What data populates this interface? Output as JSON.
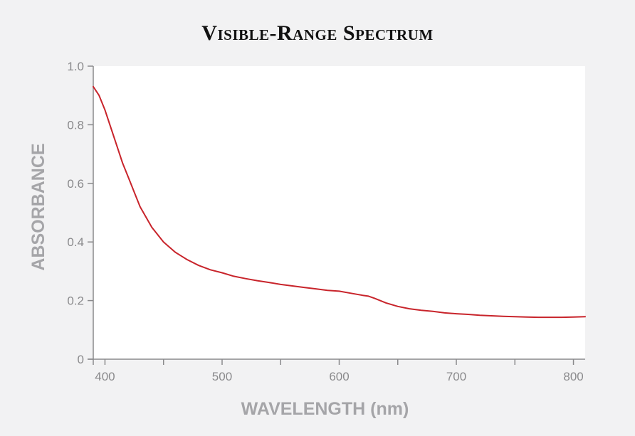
{
  "chart_data": {
    "type": "line",
    "title": "Visible-Range Spectrum",
    "xlabel": "WAVELENGTH (nm)",
    "ylabel": "ABSORBANCE",
    "xlim": [
      390,
      810
    ],
    "ylim": [
      0,
      1.0
    ],
    "x_ticks": [
      400,
      500,
      600,
      700,
      800
    ],
    "y_ticks": [
      0,
      0.2,
      0.4,
      0.6,
      0.8,
      1.0
    ],
    "y_tick_labels": [
      "0",
      "0.2",
      "0.4",
      "0.6",
      "0.8",
      "1.0"
    ],
    "grid": false,
    "legend": "none",
    "colors": {
      "line": "#c8242b",
      "plot_bg": "#ffffff",
      "page_bg": "#f2f2f3",
      "axis": "#8a8a8c"
    },
    "series": [
      {
        "x": [
          390,
          395,
          400,
          405,
          410,
          415,
          420,
          425,
          430,
          440,
          450,
          460,
          470,
          480,
          490,
          500,
          510,
          520,
          530,
          540,
          550,
          560,
          570,
          580,
          590,
          600,
          610,
          620,
          625,
          630,
          640,
          650,
          660,
          670,
          680,
          690,
          700,
          710,
          720,
          730,
          740,
          750,
          760,
          770,
          780,
          790,
          800,
          810
        ],
        "y": [
          0.93,
          0.9,
          0.85,
          0.79,
          0.73,
          0.67,
          0.62,
          0.57,
          0.52,
          0.45,
          0.4,
          0.365,
          0.34,
          0.32,
          0.305,
          0.295,
          0.283,
          0.275,
          0.268,
          0.262,
          0.255,
          0.25,
          0.245,
          0.24,
          0.235,
          0.232,
          0.225,
          0.218,
          0.215,
          0.208,
          0.192,
          0.18,
          0.172,
          0.167,
          0.163,
          0.158,
          0.155,
          0.153,
          0.15,
          0.148,
          0.146,
          0.145,
          0.144,
          0.143,
          0.143,
          0.143,
          0.144,
          0.145
        ]
      }
    ]
  }
}
